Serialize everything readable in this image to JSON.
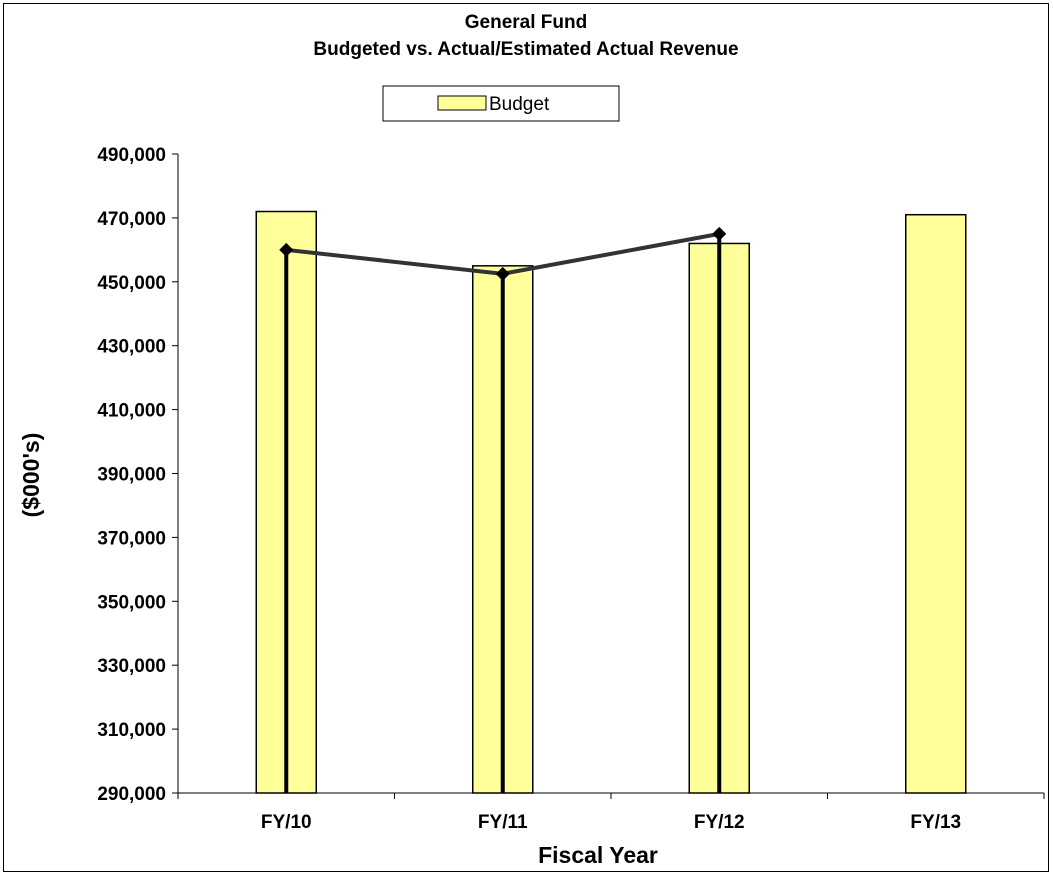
{
  "chart_data": {
    "type": "bar",
    "title": "General Fund",
    "subtitle": "Budgeted vs. Actual/Estimated Actual Revenue",
    "xlabel": "Fiscal Year",
    "ylabel": "($000's)",
    "categories": [
      "FY/10",
      "FY/11",
      "FY/12",
      "FY/13"
    ],
    "ylim": [
      290000,
      490000
    ],
    "yticks": [
      290000,
      310000,
      330000,
      350000,
      370000,
      390000,
      410000,
      430000,
      450000,
      470000,
      490000
    ],
    "ytick_labels": [
      "290,000",
      "310,000",
      "330,000",
      "350,000",
      "370,000",
      "390,000",
      "410,000",
      "430,000",
      "450,000",
      "470,000",
      "490,000"
    ],
    "series": [
      {
        "name": "Budget",
        "type": "bar",
        "color": "#FFFF99",
        "values": [
          472000,
          455000,
          462000,
          471000
        ]
      },
      {
        "type": "line",
        "color": "#333333",
        "values": [
          460000,
          452500,
          465000,
          null
        ]
      }
    ],
    "legend": {
      "position": "top-center",
      "entries": [
        "Budget"
      ]
    },
    "grid": false
  }
}
